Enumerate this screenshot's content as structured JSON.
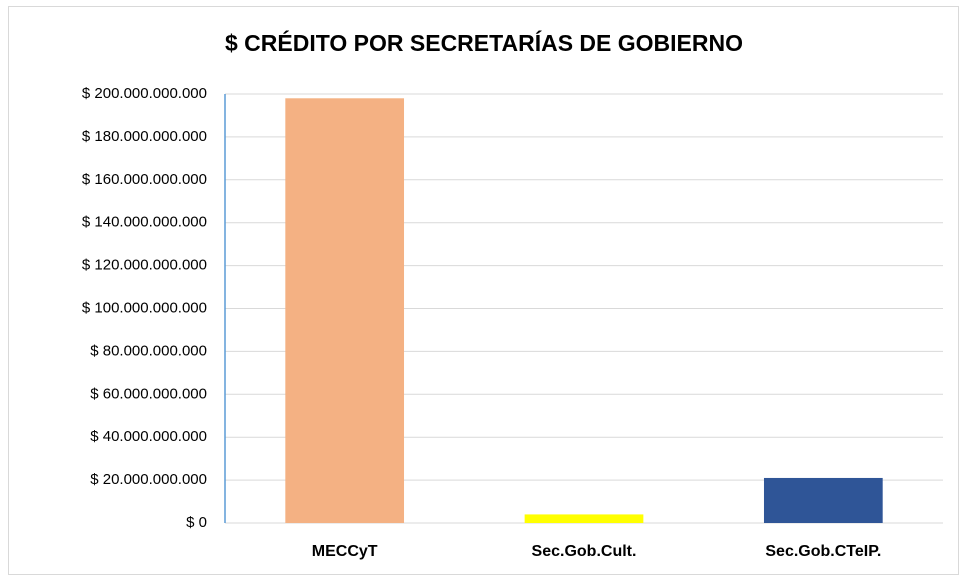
{
  "chart_data": {
    "type": "bar",
    "title": "$ CRÉDITO POR SECRETARÍAS DE GOBIERNO",
    "categories": [
      "MECCyT",
      "Sec.Gob.Cult.",
      "Sec.Gob.CTeIP."
    ],
    "values": [
      198000000000,
      4000000000,
      21000000000
    ],
    "colors": [
      "#f4b183",
      "#ffff00",
      "#2f5597"
    ],
    "ylim": [
      0,
      200000000000
    ],
    "yticks": [
      {
        "value": 0,
        "label": "$ 0"
      },
      {
        "value": 20000000000,
        "label": "$ 20.000.000.000"
      },
      {
        "value": 40000000000,
        "label": "$ 40.000.000.000"
      },
      {
        "value": 60000000000,
        "label": "$ 60.000.000.000"
      },
      {
        "value": 80000000000,
        "label": "$ 80.000.000.000"
      },
      {
        "value": 100000000000,
        "label": "$ 100.000.000.000"
      },
      {
        "value": 120000000000,
        "label": "$ 120.000.000.000"
      },
      {
        "value": 140000000000,
        "label": "$ 140.000.000.000"
      },
      {
        "value": 160000000000,
        "label": "$ 160.000.000.000"
      },
      {
        "value": 180000000000,
        "label": "$ 180.000.000.000"
      },
      {
        "value": 200000000000,
        "label": "$ 200.000.000.000"
      }
    ],
    "grid": true
  }
}
